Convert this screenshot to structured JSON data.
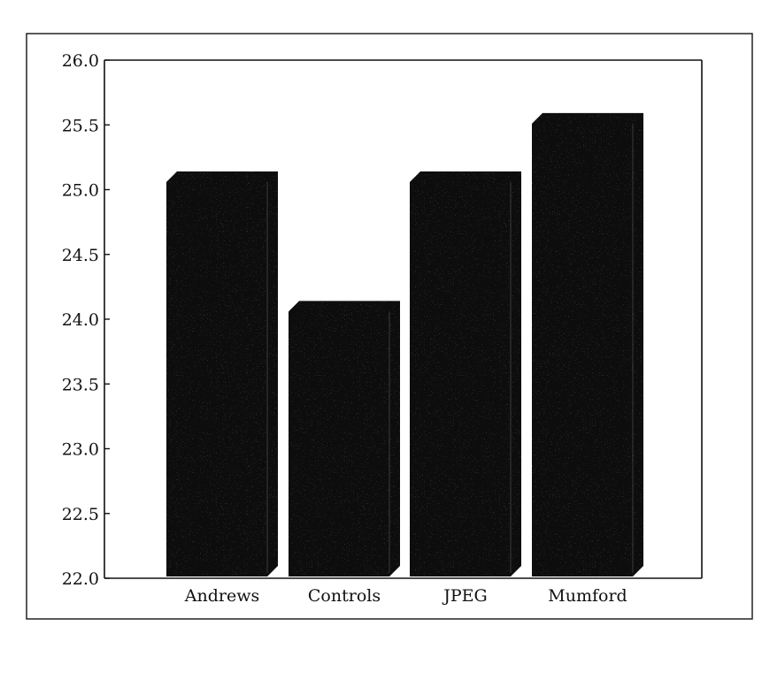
{
  "chart_data": {
    "type": "bar",
    "categories": [
      "Andrews",
      "Controls",
      "JPEG",
      "Mumford"
    ],
    "values": [
      25.1,
      24.1,
      25.1,
      25.55
    ],
    "title": "",
    "xlabel": "",
    "ylabel": "",
    "ylim": [
      22.0,
      26.0
    ],
    "yticks": [
      "22.0",
      "22.5",
      "23.0",
      "23.5",
      "24.0",
      "24.5",
      "25.0",
      "25.5",
      "26.0"
    ],
    "grid": false,
    "bar_color": "#0b0b0b"
  }
}
